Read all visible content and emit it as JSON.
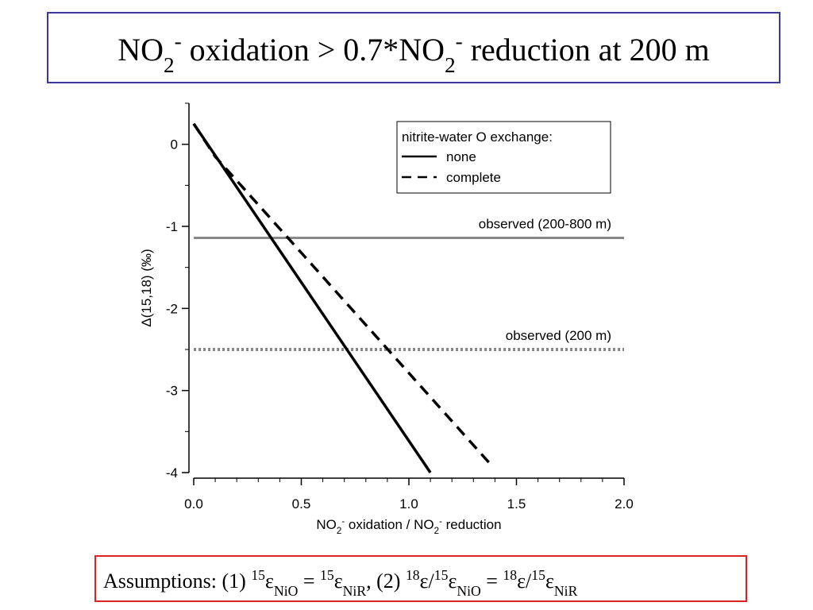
{
  "slide_title": [
    {
      "t": "NO"
    },
    {
      "t": "2",
      "s": "sub"
    },
    {
      "t": "-",
      "s": "super"
    },
    {
      "t": " oxidation > 0.7*NO"
    },
    {
      "t": "2",
      "s": "sub"
    },
    {
      "t": "-",
      "s": "super"
    },
    {
      "t": " reduction at 200 m"
    }
  ],
  "assumptions": [
    {
      "t": "Assumptions: (1) "
    },
    {
      "t": "15",
      "s": "super"
    },
    {
      "t": "ε"
    },
    {
      "t": "NiO",
      "s": "sub"
    },
    {
      "t": " = "
    },
    {
      "t": "15",
      "s": "super"
    },
    {
      "t": "ε"
    },
    {
      "t": "NiR",
      "s": "sub"
    },
    {
      "t": ", (2) "
    },
    {
      "t": "18",
      "s": "super"
    },
    {
      "t": "ε/"
    },
    {
      "t": "15",
      "s": "super"
    },
    {
      "t": "ε"
    },
    {
      "t": "NiO",
      "s": "sub"
    },
    {
      "t": " = "
    },
    {
      "t": "18",
      "s": "super"
    },
    {
      "t": "ε/"
    },
    {
      "t": "15",
      "s": "super"
    },
    {
      "t": "ε"
    },
    {
      "t": "NiR",
      "s": "sub"
    }
  ],
  "chart_data": {
    "type": "line",
    "x_label": [
      {
        "t": "NO"
      },
      {
        "t": "2",
        "s": "sub"
      },
      {
        "t": "-",
        "s": "super"
      },
      {
        "t": "  oxidation / NO"
      },
      {
        "t": "2",
        "s": "sub"
      },
      {
        "t": "-",
        "s": "super"
      },
      {
        "t": "  reduction"
      }
    ],
    "y_label": "Δ(15,18) (‰)",
    "xlim": [
      0,
      2
    ],
    "ylim": [
      -4,
      0.5
    ],
    "xticks": [
      {
        "value": 0,
        "label": "0.0"
      },
      0.5,
      {
        "value": 1,
        "label": "1.0"
      },
      1.5,
      {
        "value": 2,
        "label": "2.0"
      }
    ],
    "yticks": [
      0,
      -1,
      -2,
      -3,
      -4
    ],
    "xminor": [
      0.1,
      0.2,
      0.3,
      0.4,
      0.6,
      0.7,
      0.8,
      0.9,
      1.1,
      1.2,
      1.3,
      1.4,
      1.6,
      1.7,
      1.8,
      1.9
    ],
    "yminor": [
      0.5,
      -0.5,
      -1.5,
      -2.5,
      -3.5
    ],
    "legend_title": "nitrite-water O exchange:",
    "legend": "upper right",
    "series": [
      {
        "name": "none",
        "color": "#000000",
        "dash": "solid",
        "x": [
          0,
          1.1
        ],
        "values": [
          0.25,
          -4
        ]
      },
      {
        "name": "complete",
        "color": "#000000",
        "dash": "dashed",
        "x": [
          0,
          0.1,
          1.38
        ],
        "values": [
          0.25,
          -0.15,
          -3.9
        ]
      }
    ],
    "reference_lines": [
      {
        "label": "observed (200-800 m)",
        "value": -1.14,
        "color": "#888888",
        "dash": "solid"
      },
      {
        "label": "observed (200 m)",
        "value": -2.5,
        "color": "#888888",
        "dash": "dotted"
      }
    ]
  }
}
